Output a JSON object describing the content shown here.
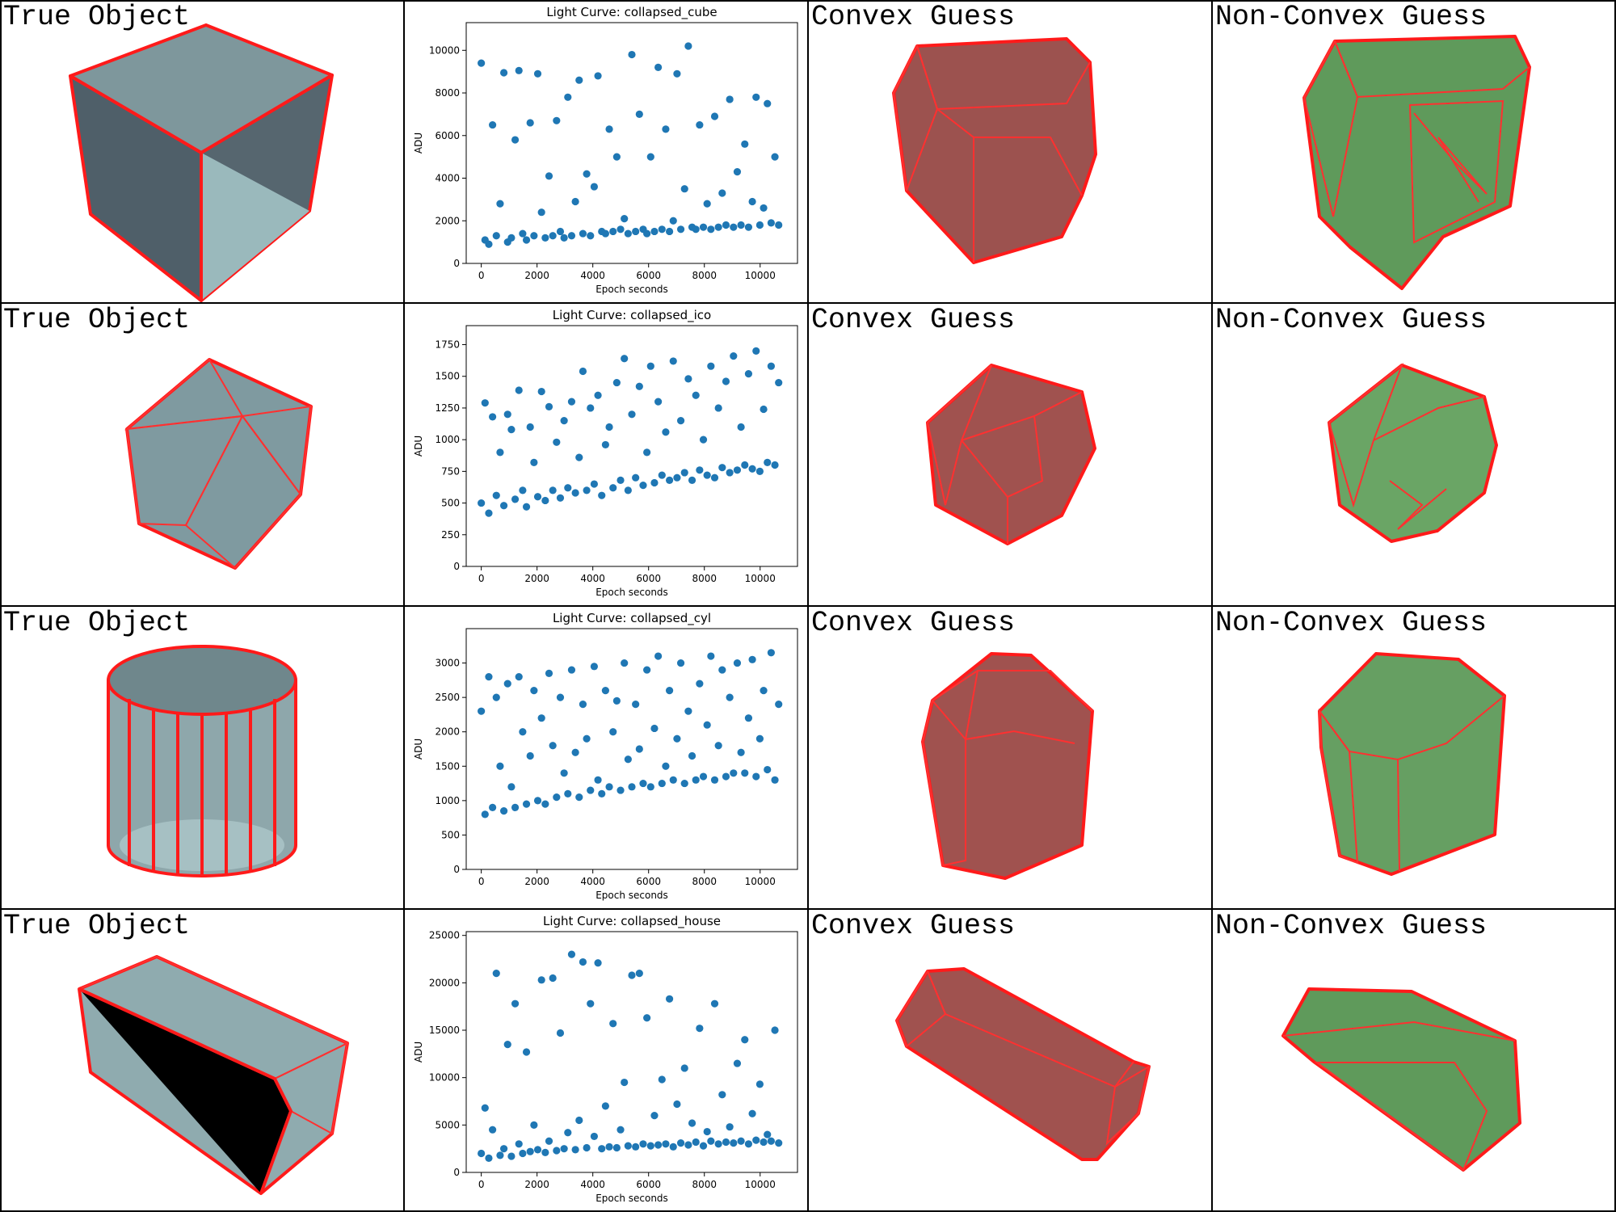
{
  "rows": [
    {
      "true_label": "True Object",
      "convex_label": "Convex Guess",
      "nonconvex_label": "Non-Convex Guess"
    },
    {
      "true_label": "True Object",
      "convex_label": "Convex Guess",
      "nonconvex_label": "Non-Convex Guess"
    },
    {
      "true_label": "True Object",
      "convex_label": "Convex Guess",
      "nonconvex_label": "Non-Convex Guess"
    },
    {
      "true_label": "True Object",
      "convex_label": "Convex Guess",
      "nonconvex_label": "Non-Convex Guess"
    }
  ],
  "chart_data": [
    {
      "type": "scatter",
      "title": "Light Curve: collapsed_cube",
      "xlabel": "Epoch seconds",
      "ylabel": "ADU",
      "color": "#1f77b4",
      "x": [
        0,
        135,
        270,
        405,
        540,
        675,
        810,
        945,
        1080,
        1215,
        1350,
        1485,
        1620,
        1755,
        1890,
        2025,
        2160,
        2295,
        2430,
        2565,
        2700,
        2835,
        2970,
        3105,
        3240,
        3375,
        3510,
        3645,
        3780,
        3915,
        4050,
        4185,
        4320,
        4455,
        4590,
        4725,
        4860,
        4995,
        5130,
        5265,
        5400,
        5535,
        5670,
        5805,
        5940,
        6075,
        6210,
        6345,
        6480,
        6615,
        6750,
        6885,
        7020,
        7155,
        7290,
        7425,
        7560,
        7695,
        7830,
        7965,
        8100,
        8235,
        8370,
        8505,
        8640,
        8775,
        8910,
        9045,
        9180,
        9315,
        9450,
        9585,
        9720,
        9855,
        9990,
        10125,
        10260,
        10395,
        10530,
        10665
      ],
      "values": [
        9400,
        1100,
        900,
        6500,
        1300,
        2800,
        8950,
        1000,
        1200,
        5800,
        9050,
        1400,
        1100,
        6600,
        1300,
        8900,
        2400,
        1200,
        4100,
        1300,
        6700,
        1500,
        1200,
        7800,
        1300,
        2900,
        8600,
        1400,
        4200,
        1300,
        3600,
        8800,
        1500,
        1400,
        6300,
        1500,
        5000,
        1600,
        2100,
        1400,
        9800,
        1500,
        7000,
        1600,
        1400,
        5000,
        1500,
        9200,
        1600,
        6300,
        1500,
        2000,
        8900,
        1600,
        3500,
        10200,
        1700,
        1600,
        6500,
        1700,
        2800,
        1600,
        6900,
        1700,
        3300,
        1800,
        7700,
        1700,
        4300,
        1800,
        5600,
        1700,
        2900,
        7800,
        1800,
        2600,
        7500,
        1900,
        5000,
        1800
      ],
      "xlim": [
        -540,
        11340
      ],
      "ylim": [
        0,
        11300
      ],
      "xticks": [
        0,
        2000,
        4000,
        6000,
        8000,
        10000
      ],
      "yticks": [
        0,
        2000,
        4000,
        6000,
        8000,
        10000
      ]
    },
    {
      "type": "scatter",
      "title": "Light Curve: collapsed_ico",
      "xlabel": "Epoch seconds",
      "ylabel": "ADU",
      "color": "#1f77b4",
      "x": [
        0,
        135,
        270,
        405,
        540,
        675,
        810,
        945,
        1080,
        1215,
        1350,
        1485,
        1620,
        1755,
        1890,
        2025,
        2160,
        2295,
        2430,
        2565,
        2700,
        2835,
        2970,
        3105,
        3240,
        3375,
        3510,
        3645,
        3780,
        3915,
        4050,
        4185,
        4320,
        4455,
        4590,
        4725,
        4860,
        4995,
        5130,
        5265,
        5400,
        5535,
        5670,
        5805,
        5940,
        6075,
        6210,
        6345,
        6480,
        6615,
        6750,
        6885,
        7020,
        7155,
        7290,
        7425,
        7560,
        7695,
        7830,
        7965,
        8100,
        8235,
        8370,
        8505,
        8640,
        8775,
        8910,
        9045,
        9180,
        9315,
        9450,
        9585,
        9720,
        9855,
        9990,
        10125,
        10260,
        10395,
        10530,
        10665
      ],
      "values": [
        500,
        1290,
        420,
        1180,
        560,
        900,
        480,
        1200,
        1080,
        530,
        1390,
        600,
        470,
        1100,
        820,
        550,
        1380,
        520,
        1260,
        600,
        980,
        540,
        1150,
        620,
        1300,
        580,
        860,
        1540,
        600,
        1250,
        650,
        1350,
        560,
        960,
        1100,
        620,
        1450,
        680,
        1640,
        600,
        1200,
        700,
        1420,
        640,
        900,
        1580,
        660,
        1300,
        720,
        1060,
        680,
        1620,
        700,
        1150,
        740,
        1480,
        680,
        1350,
        760,
        1000,
        720,
        1580,
        700,
        1250,
        780,
        1460,
        740,
        1660,
        760,
        1100,
        800,
        1520,
        770,
        1700,
        750,
        1240,
        820,
        1580,
        800,
        1450
      ],
      "xlim": [
        -540,
        11340
      ],
      "ylim": [
        0,
        1900
      ],
      "xticks": [
        0,
        2000,
        4000,
        6000,
        8000,
        10000
      ],
      "yticks": [
        0,
        250,
        500,
        750,
        1000,
        1250,
        1500,
        1750
      ]
    },
    {
      "type": "scatter",
      "title": "Light Curve: collapsed_cyl",
      "xlabel": "Epoch seconds",
      "ylabel": "ADU",
      "color": "#1f77b4",
      "x": [
        0,
        135,
        270,
        405,
        540,
        675,
        810,
        945,
        1080,
        1215,
        1350,
        1485,
        1620,
        1755,
        1890,
        2025,
        2160,
        2295,
        2430,
        2565,
        2700,
        2835,
        2970,
        3105,
        3240,
        3375,
        3510,
        3645,
        3780,
        3915,
        4050,
        4185,
        4320,
        4455,
        4590,
        4725,
        4860,
        4995,
        5130,
        5265,
        5400,
        5535,
        5670,
        5805,
        5940,
        6075,
        6210,
        6345,
        6480,
        6615,
        6750,
        6885,
        7020,
        7155,
        7290,
        7425,
        7560,
        7695,
        7830,
        7965,
        8100,
        8235,
        8370,
        8505,
        8640,
        8775,
        8910,
        9045,
        9180,
        9315,
        9450,
        9585,
        9720,
        9855,
        9990,
        10125,
        10260,
        10395,
        10530,
        10665
      ],
      "values": [
        2300,
        800,
        2800,
        900,
        2500,
        1500,
        850,
        2700,
        1200,
        900,
        2800,
        2000,
        950,
        1650,
        2600,
        1000,
        2200,
        950,
        2850,
        1800,
        1050,
        2500,
        1400,
        1100,
        2900,
        1700,
        1050,
        2400,
        1900,
        1150,
        2950,
        1300,
        1100,
        2600,
        1200,
        2000,
        2450,
        1150,
        3000,
        1600,
        1200,
        2400,
        1750,
        1250,
        2900,
        1200,
        2050,
        3100,
        1250,
        1500,
        2600,
        1300,
        1900,
        3000,
        1250,
        2300,
        1650,
        1300,
        2700,
        1350,
        2100,
        3100,
        1300,
        1800,
        2900,
        1350,
        2500,
        1400,
        3000,
        1700,
        1400,
        2200,
        3050,
        1350,
        1900,
        2600,
        1450,
        3150,
        1300,
        2400
      ],
      "xlim": [
        -540,
        11340
      ],
      "ylim": [
        0,
        3500
      ],
      "xticks": [
        0,
        2000,
        4000,
        6000,
        8000,
        10000
      ],
      "yticks": [
        0,
        500,
        1000,
        1500,
        2000,
        2500,
        3000
      ]
    },
    {
      "type": "scatter",
      "title": "Light Curve: collapsed_house",
      "xlabel": "Epoch seconds",
      "ylabel": "ADU",
      "color": "#1f77b4",
      "x": [
        0,
        135,
        270,
        405,
        540,
        675,
        810,
        945,
        1080,
        1215,
        1350,
        1485,
        1620,
        1755,
        1890,
        2025,
        2160,
        2295,
        2430,
        2565,
        2700,
        2835,
        2970,
        3105,
        3240,
        3375,
        3510,
        3645,
        3780,
        3915,
        4050,
        4185,
        4320,
        4455,
        4590,
        4725,
        4860,
        4995,
        5130,
        5265,
        5400,
        5535,
        5670,
        5805,
        5940,
        6075,
        6210,
        6345,
        6480,
        6615,
        6750,
        6885,
        7020,
        7155,
        7290,
        7425,
        7560,
        7695,
        7830,
        7965,
        8100,
        8235,
        8370,
        8505,
        8640,
        8775,
        8910,
        9045,
        9180,
        9315,
        9450,
        9585,
        9720,
        9855,
        9990,
        10125,
        10260,
        10395,
        10530,
        10665
      ],
      "values": [
        2000,
        6800,
        1500,
        4500,
        21000,
        1800,
        2500,
        13500,
        1700,
        17800,
        3000,
        2000,
        12700,
        2200,
        5000,
        2400,
        20300,
        2100,
        3300,
        20500,
        2300,
        14700,
        2500,
        4200,
        23000,
        2400,
        5500,
        22200,
        2600,
        17800,
        3800,
        22100,
        2500,
        7000,
        2700,
        15700,
        2600,
        4500,
        9500,
        2800,
        20800,
        2700,
        21000,
        3000,
        16300,
        2800,
        6000,
        2900,
        9800,
        3000,
        18300,
        2700,
        7200,
        3100,
        11000,
        2900,
        5200,
        3200,
        15200,
        2800,
        4300,
        3300,
        17800,
        3000,
        8200,
        3200,
        4800,
        3100,
        11500,
        3300,
        14000,
        3000,
        6200,
        3400,
        9300,
        3200,
        4000,
        3300,
        15000,
        3100
      ],
      "xlim": [
        -540,
        11340
      ],
      "ylim": [
        0,
        25400
      ],
      "xticks": [
        0,
        2000,
        4000,
        6000,
        8000,
        10000
      ],
      "yticks": [
        0,
        5000,
        10000,
        15000,
        20000,
        25000
      ]
    }
  ]
}
